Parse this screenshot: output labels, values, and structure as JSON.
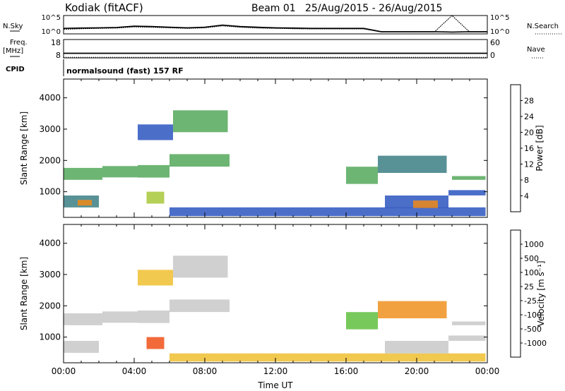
{
  "header": {
    "station": "Kodiak (fitACF)",
    "beam": "Beam 01",
    "date_range": "25/Aug/2015 - 26/Aug/2015"
  },
  "chart_data": [
    {
      "type": "line",
      "panel": "noise",
      "left_label": "N.Sky",
      "right_label": "N.Search",
      "left_ticks": [
        "10^5",
        "10^0"
      ],
      "right_ticks": [
        "10^5",
        "10^0"
      ],
      "series": [
        {
          "name": "N.Sky",
          "x": [
            0,
            1,
            2,
            3,
            4,
            5,
            6,
            7,
            8,
            9,
            10,
            11,
            12,
            13,
            14,
            15,
            16,
            17,
            18,
            19,
            20,
            21,
            22,
            23,
            24
          ],
          "y": [
            0.3,
            0.32,
            0.33,
            0.35,
            0.42,
            0.4,
            0.36,
            0.33,
            0.36,
            0.48,
            0.4,
            0.36,
            0.33,
            0.32,
            0.3,
            0.3,
            0.3,
            0.3,
            0.12,
            0.12,
            0.12,
            0.12,
            0.1,
            0.12,
            0.12
          ]
        },
        {
          "name": "N.Search",
          "x": [
            0,
            1,
            2,
            3,
            4,
            5,
            6,
            7,
            8,
            9,
            10,
            11,
            12,
            13,
            14,
            15,
            16,
            17,
            18,
            19,
            20,
            21,
            22,
            23,
            24
          ],
          "y": [
            0.25,
            0.28,
            0.3,
            0.32,
            0.38,
            0.36,
            0.33,
            0.3,
            0.33,
            0.44,
            0.36,
            0.32,
            0.3,
            0.28,
            0.27,
            0.27,
            0.27,
            0.27,
            0.1,
            0.1,
            0.1,
            0.1,
            1.0,
            0.1,
            0.1
          ]
        }
      ]
    },
    {
      "type": "line",
      "panel": "frequency",
      "left_label_lines": [
        "Freq.",
        "[MHz]"
      ],
      "left_ticks": [
        "18",
        "8"
      ],
      "right_label": "Nave",
      "right_ticks": [
        "60",
        "0"
      ],
      "cpid_label": "CPID",
      "cpid_text": "normalsound (fast) 157 RF",
      "series": [
        {
          "name": "Freq.",
          "x": [
            0,
            24
          ],
          "y": [
            10.5,
            10.5
          ]
        },
        {
          "name": "Nave",
          "x": [
            0,
            24
          ],
          "y": [
            2,
            2
          ]
        }
      ]
    },
    {
      "type": "heatmap",
      "panel": "power",
      "ylabel": "Slant Range [km]",
      "yticks": [
        1000,
        2000,
        3000,
        4000
      ],
      "ylim": [
        180,
        4600
      ],
      "xlim": [
        0,
        24
      ],
      "colorbar_label": "Power [dB]",
      "colorbar_ticks": [
        "4",
        "8",
        "12",
        "16",
        "20",
        "24",
        "28"
      ],
      "colors": [
        "#1a1ad8",
        "#2c55c0",
        "#3c7f84",
        "#54a85a",
        "#a8c83a",
        "#e8c020",
        "#f08a18",
        "#e83010"
      ],
      "regions": [
        {
          "x0": 0.0,
          "x1": 2.2,
          "y0": 1380,
          "y1": 1760,
          "level": 3
        },
        {
          "x0": 2.2,
          "x1": 4.2,
          "y0": 1460,
          "y1": 1820,
          "level": 3
        },
        {
          "x0": 4.2,
          "x1": 6.0,
          "y0": 1450,
          "y1": 1850,
          "level": 3
        },
        {
          "x0": 6.0,
          "x1": 9.4,
          "y0": 1800,
          "y1": 2200,
          "level": 3
        },
        {
          "x0": 4.2,
          "x1": 6.2,
          "y0": 2650,
          "y1": 3150,
          "level": 1
        },
        {
          "x0": 6.2,
          "x1": 9.3,
          "y0": 2900,
          "y1": 3600,
          "level": 3
        },
        {
          "x0": 0.0,
          "x1": 2.0,
          "y0": 500,
          "y1": 880,
          "level": 2
        },
        {
          "x0": 0.8,
          "x1": 1.6,
          "y0": 560,
          "y1": 740,
          "level": 6
        },
        {
          "x0": 4.7,
          "x1": 5.7,
          "y0": 620,
          "y1": 1000,
          "level": 4
        },
        {
          "x0": 6.0,
          "x1": 23.9,
          "y0": 220,
          "y1": 500,
          "level": 1
        },
        {
          "x0": 16.0,
          "x1": 17.8,
          "y0": 1250,
          "y1": 1800,
          "level": 3
        },
        {
          "x0": 17.8,
          "x1": 21.7,
          "y0": 1600,
          "y1": 2150,
          "level": 2
        },
        {
          "x0": 18.2,
          "x1": 21.8,
          "y0": 480,
          "y1": 880,
          "level": 1
        },
        {
          "x0": 19.8,
          "x1": 21.2,
          "y0": 480,
          "y1": 720,
          "level": 6
        },
        {
          "x0": 21.8,
          "x1": 23.9,
          "y0": 880,
          "y1": 1050,
          "level": 1
        },
        {
          "x0": 22.0,
          "x1": 23.9,
          "y0": 1380,
          "y1": 1500,
          "level": 3
        }
      ]
    },
    {
      "type": "heatmap",
      "panel": "velocity",
      "ylabel": "Slant Range [km]",
      "yticks": [
        1000,
        2000,
        3000,
        4000
      ],
      "ylim": [
        180,
        4600
      ],
      "xlim": [
        0,
        24
      ],
      "xlabel": "Time UT",
      "xticks": [
        "00:00",
        "04:00",
        "08:00",
        "12:00",
        "16:00",
        "20:00",
        "00:00"
      ],
      "colorbar_label": "Velocity [m s⁻¹]",
      "colorbar_ticks": [
        "-1000",
        "-500",
        "-100",
        "-25",
        "25",
        "100",
        "500",
        "1000"
      ],
      "colors": [
        "#e82010",
        "#f05018",
        "#f09020",
        "#f0c030",
        "#c8c8c8",
        "#60c040",
        "#2c9050",
        "#2c6ca8",
        "#2040c8"
      ],
      "regions": [
        {
          "x0": 0.0,
          "x1": 2.2,
          "y0": 1380,
          "y1": 1760,
          "level": 4
        },
        {
          "x0": 2.2,
          "x1": 4.2,
          "y0": 1460,
          "y1": 1820,
          "level": 4
        },
        {
          "x0": 4.2,
          "x1": 6.0,
          "y0": 1450,
          "y1": 1850,
          "level": 4
        },
        {
          "x0": 6.0,
          "x1": 9.4,
          "y0": 1800,
          "y1": 2200,
          "level": 4
        },
        {
          "x0": 4.2,
          "x1": 6.2,
          "y0": 2650,
          "y1": 3150,
          "level": 3
        },
        {
          "x0": 6.2,
          "x1": 9.3,
          "y0": 2900,
          "y1": 3600,
          "level": 4
        },
        {
          "x0": 0.0,
          "x1": 2.0,
          "y0": 500,
          "y1": 880,
          "level": 4
        },
        {
          "x0": 4.7,
          "x1": 5.7,
          "y0": 620,
          "y1": 1000,
          "level": 1
        },
        {
          "x0": 6.0,
          "x1": 23.9,
          "y0": 220,
          "y1": 480,
          "level": 3
        },
        {
          "x0": 16.0,
          "x1": 17.8,
          "y0": 1250,
          "y1": 1800,
          "level": 5
        },
        {
          "x0": 17.8,
          "x1": 21.7,
          "y0": 1600,
          "y1": 2150,
          "level": 2
        },
        {
          "x0": 18.2,
          "x1": 21.8,
          "y0": 480,
          "y1": 880,
          "level": 4
        },
        {
          "x0": 21.8,
          "x1": 23.9,
          "y0": 880,
          "y1": 1050,
          "level": 4
        },
        {
          "x0": 22.0,
          "x1": 23.9,
          "y0": 1380,
          "y1": 1500,
          "level": 4
        }
      ]
    }
  ]
}
